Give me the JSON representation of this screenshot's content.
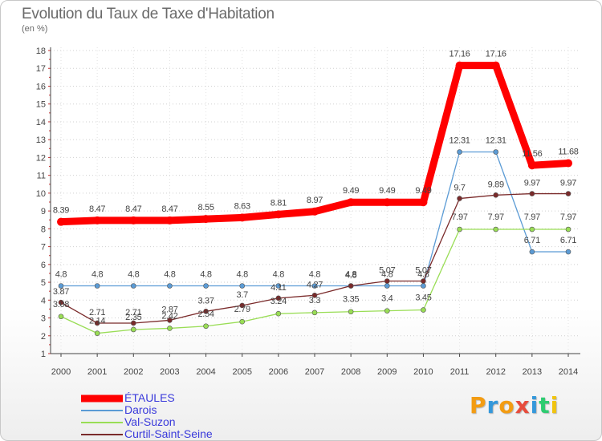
{
  "chart_data": {
    "type": "line",
    "title": "Evolution du Taux de Taxe d'Habitation",
    "subtitle": "(en %)",
    "xlabel": "",
    "ylabel": "",
    "x": [
      "2000",
      "2001",
      "2002",
      "2003",
      "2004",
      "2005",
      "2006",
      "2007",
      "2008",
      "2009",
      "2010",
      "2011",
      "2012",
      "2013",
      "2014"
    ],
    "ylim": [
      1,
      18
    ],
    "yticks": [
      "1",
      "2",
      "3",
      "4",
      "5",
      "6",
      "7",
      "8",
      "9",
      "10",
      "11",
      "12",
      "13",
      "14",
      "15",
      "16",
      "17",
      "18"
    ],
    "grid": "horizontal dotted",
    "legend_position": "bottom-left",
    "series": [
      {
        "name": "ÉTAULES",
        "color": "#ff0000",
        "values": [
          8.39,
          8.47,
          8.47,
          8.47,
          8.55,
          8.63,
          8.81,
          8.97,
          9.49,
          9.49,
          9.49,
          17.16,
          17.16,
          11.56,
          11.68
        ],
        "labels": [
          "8.39",
          "8.47",
          "8.47",
          "8.47",
          "8.55",
          "8.63",
          "8.81",
          "8.97",
          "9.49",
          "9.49",
          "9.49",
          "17.16",
          "17.16",
          "11.56",
          "11.68"
        ]
      },
      {
        "name": "Darois",
        "color": "#5b9bd5",
        "values": [
          4.8,
          4.8,
          4.8,
          4.8,
          4.8,
          4.8,
          4.8,
          4.8,
          4.8,
          4.8,
          4.8,
          12.31,
          12.31,
          6.71,
          6.71
        ],
        "labels": [
          "4.8",
          "4.8",
          "4.8",
          "4.8",
          "4.8",
          "4.8",
          "4.8",
          "4.8",
          "4.8",
          "4.8",
          "4.8",
          "12.31",
          "12.31",
          "6.71",
          "6.71"
        ]
      },
      {
        "name": "Val-Suzon",
        "color": "#99dd55",
        "values": [
          3.08,
          2.14,
          2.35,
          2.42,
          2.54,
          2.79,
          3.24,
          3.3,
          3.35,
          3.4,
          3.45,
          7.97,
          7.97,
          7.97,
          7.97
        ],
        "labels": [
          "3.08",
          "2.14",
          "2.35",
          "2.42",
          "2.54",
          "2.79",
          "3.24",
          "3.3",
          "3.35",
          "3.4",
          "3.45",
          "7.97",
          "7.97",
          "7.97",
          "7.97"
        ]
      },
      {
        "name": "Curtil-Saint-Seine",
        "color": "#7a2a2a",
        "values": [
          3.87,
          2.71,
          2.71,
          2.87,
          3.37,
          3.7,
          4.11,
          4.27,
          4.8,
          5.07,
          5.07,
          9.7,
          9.89,
          9.97,
          9.97
        ],
        "labels": [
          "3.87",
          "2.71",
          "2.71",
          "2.87",
          "3.37",
          "3.7",
          "4.11",
          "4.27",
          "4.8",
          "5.07",
          "5.07",
          "9.7",
          "9.89",
          "9.97",
          "9.97"
        ]
      }
    ]
  },
  "logo": {
    "letters": [
      "P",
      "r",
      "o",
      "x",
      "i",
      "t",
      "i"
    ],
    "colors": [
      "#f39c12",
      "#3498db",
      "#f39c12",
      "#e74c3c",
      "#3498db",
      "#2ecc71",
      "#f1c40f"
    ]
  }
}
